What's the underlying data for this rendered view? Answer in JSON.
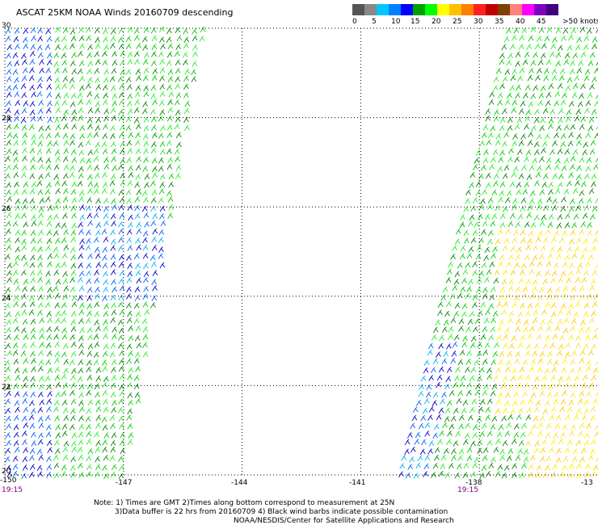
{
  "title": "ASCAT 25KM NOAA Winds 20160709 descending",
  "legend": {
    "units": ">50 knots",
    "swatches": [
      {
        "color": "#555555"
      },
      {
        "color": "#888888"
      },
      {
        "color": "#00c8ff"
      },
      {
        "color": "#0080ff"
      },
      {
        "color": "#0000ff"
      },
      {
        "color": "#00a000"
      },
      {
        "color": "#00ff00"
      },
      {
        "color": "#ffff00"
      },
      {
        "color": "#ffc000"
      },
      {
        "color": "#ff8000"
      },
      {
        "color": "#ff2020"
      },
      {
        "color": "#c00000"
      },
      {
        "color": "#804000"
      },
      {
        "color": "#ff8080"
      },
      {
        "color": "#ff00ff"
      },
      {
        "color": "#8000c0"
      },
      {
        "color": "#400080"
      }
    ],
    "labels": [
      "0",
      "5",
      "10",
      "15",
      "20",
      "25",
      "30",
      "35",
      "40",
      "45"
    ]
  },
  "map": {
    "lon_min": -150,
    "lon_max": -135,
    "lat_min": 20,
    "lat_max": 30,
    "lon_grid": [
      -147,
      -144,
      -141,
      -138
    ],
    "lat_grid": [
      22,
      24,
      26,
      28
    ],
    "lon_labels": [
      "-150",
      "-147",
      "-144",
      "-141",
      "-138",
      "-13"
    ],
    "lat_labels": [
      "30",
      "28",
      "26",
      "24",
      "22",
      "20"
    ],
    "pass_times": [
      "19:15",
      "19:15"
    ]
  },
  "notes": [
    "Note: 1) Times are GMT 2)Times along bottom correspond to measurement at 25N",
    "3)Data buffer is 22 hrs from 20160709 4) Black wind barbs indicate possible contamination",
    "NOAA/NESDIS/Center for Satellite Applications and Research"
  ]
}
